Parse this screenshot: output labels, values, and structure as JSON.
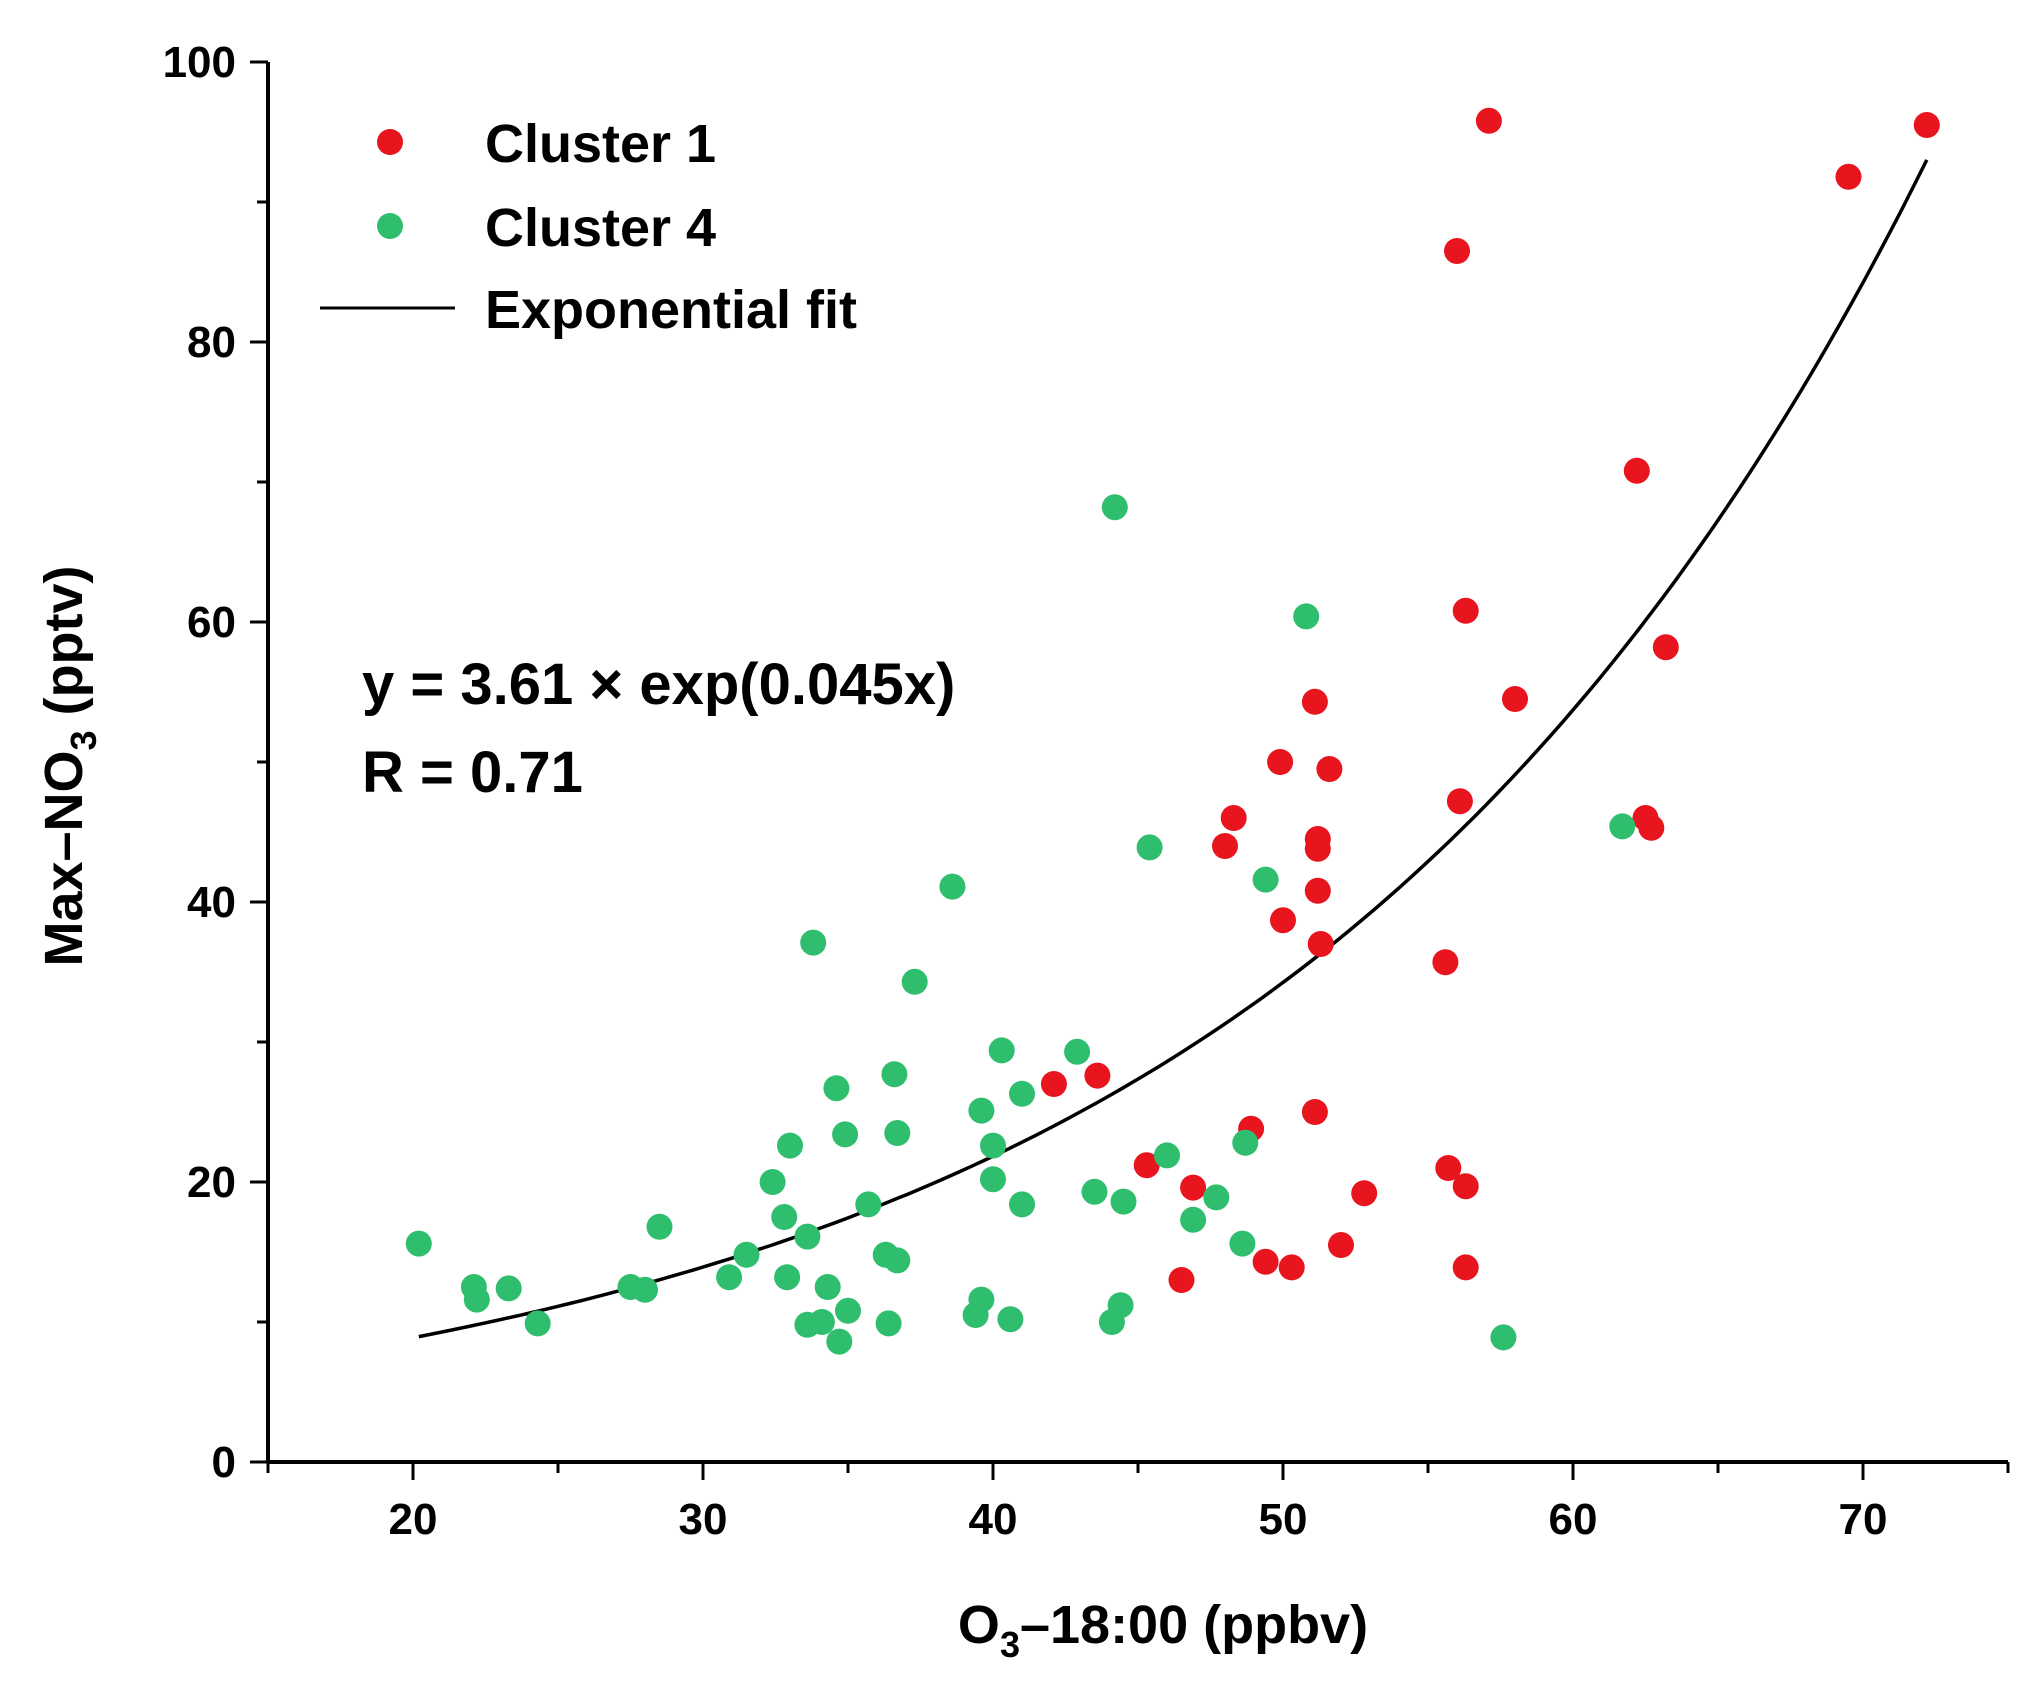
{
  "chart_data": {
    "type": "scatter",
    "xlabel": {
      "main": "O",
      "sub": "3",
      "rest": "–18:00 (ppbv)"
    },
    "ylabel": {
      "main": "Max–NO",
      "sub": "3",
      "rest": " (pptv)"
    },
    "xlim": [
      15,
      75
    ],
    "ylim": [
      0,
      100
    ],
    "x_ticks": [
      20,
      30,
      40,
      50,
      60,
      70
    ],
    "y_ticks": [
      0,
      20,
      40,
      60,
      80,
      100
    ],
    "series": [
      {
        "name": "Cluster 1",
        "color": "#e8141e",
        "points": [
          [
            57.1,
            95.8
          ],
          [
            72.2,
            95.5
          ],
          [
            69.5,
            91.8
          ],
          [
            56.0,
            86.5
          ],
          [
            62.2,
            70.8
          ],
          [
            56.3,
            60.8
          ],
          [
            63.2,
            58.2
          ],
          [
            58.0,
            54.5
          ],
          [
            51.1,
            54.3
          ],
          [
            49.9,
            50.0
          ],
          [
            51.6,
            49.5
          ],
          [
            56.1,
            47.2
          ],
          [
            48.3,
            46.0
          ],
          [
            62.5,
            46.0
          ],
          [
            62.7,
            45.3
          ],
          [
            51.2,
            44.5
          ],
          [
            48.0,
            44.0
          ],
          [
            51.2,
            43.8
          ],
          [
            51.2,
            40.8
          ],
          [
            50.0,
            38.7
          ],
          [
            51.3,
            37.0
          ],
          [
            55.6,
            35.7
          ],
          [
            42.1,
            27.0
          ],
          [
            43.6,
            27.6
          ],
          [
            51.1,
            25.0
          ],
          [
            48.9,
            23.8
          ],
          [
            45.3,
            21.2
          ],
          [
            55.7,
            21.0
          ],
          [
            46.9,
            19.6
          ],
          [
            56.3,
            19.7
          ],
          [
            52.8,
            19.2
          ],
          [
            52.0,
            15.5
          ],
          [
            49.4,
            14.3
          ],
          [
            50.3,
            13.9
          ],
          [
            56.3,
            13.9
          ],
          [
            46.5,
            13.0
          ]
        ]
      },
      {
        "name": "Cluster 4",
        "color": "#2ebe6e",
        "points": [
          [
            44.2,
            68.2
          ],
          [
            50.8,
            60.4
          ],
          [
            61.7,
            45.4
          ],
          [
            45.4,
            43.9
          ],
          [
            49.4,
            41.6
          ],
          [
            38.6,
            41.1
          ],
          [
            33.8,
            37.1
          ],
          [
            37.3,
            34.3
          ],
          [
            40.3,
            29.4
          ],
          [
            42.9,
            29.3
          ],
          [
            36.6,
            27.7
          ],
          [
            34.6,
            26.7
          ],
          [
            41.0,
            26.3
          ],
          [
            39.6,
            25.1
          ],
          [
            34.9,
            23.4
          ],
          [
            36.7,
            23.5
          ],
          [
            33.0,
            22.6
          ],
          [
            40.0,
            22.6
          ],
          [
            48.7,
            22.8
          ],
          [
            46.0,
            21.9
          ],
          [
            32.4,
            20.0
          ],
          [
            40.0,
            20.2
          ],
          [
            43.5,
            19.3
          ],
          [
            47.7,
            18.9
          ],
          [
            35.7,
            18.4
          ],
          [
            41.0,
            18.4
          ],
          [
            44.5,
            18.6
          ],
          [
            32.8,
            17.5
          ],
          [
            46.9,
            17.3
          ],
          [
            28.5,
            16.8
          ],
          [
            33.6,
            16.1
          ],
          [
            20.2,
            15.6
          ],
          [
            48.6,
            15.6
          ],
          [
            31.5,
            14.8
          ],
          [
            36.3,
            14.8
          ],
          [
            36.7,
            14.4
          ],
          [
            30.9,
            13.2
          ],
          [
            32.9,
            13.2
          ],
          [
            22.1,
            12.5
          ],
          [
            23.3,
            12.4
          ],
          [
            27.5,
            12.5
          ],
          [
            28.0,
            12.3
          ],
          [
            34.3,
            12.5
          ],
          [
            22.2,
            11.6
          ],
          [
            39.6,
            11.6
          ],
          [
            44.4,
            11.2
          ],
          [
            35.0,
            10.8
          ],
          [
            39.4,
            10.5
          ],
          [
            24.3,
            9.9
          ],
          [
            33.6,
            9.8
          ],
          [
            34.1,
            10.0
          ],
          [
            36.4,
            9.9
          ],
          [
            40.6,
            10.2
          ],
          [
            44.1,
            10.0
          ],
          [
            34.7,
            8.6
          ],
          [
            57.6,
            8.9
          ]
        ]
      }
    ],
    "fit": {
      "name": "Exponential fit",
      "color": "#000000",
      "a": 3.61,
      "b": 0.045,
      "x_range": [
        20.2,
        72.2
      ]
    },
    "annotations": [
      "y = 3.61 × exp(0.045x)",
      "R = 0.71"
    ],
    "legend_position": "top-left"
  }
}
